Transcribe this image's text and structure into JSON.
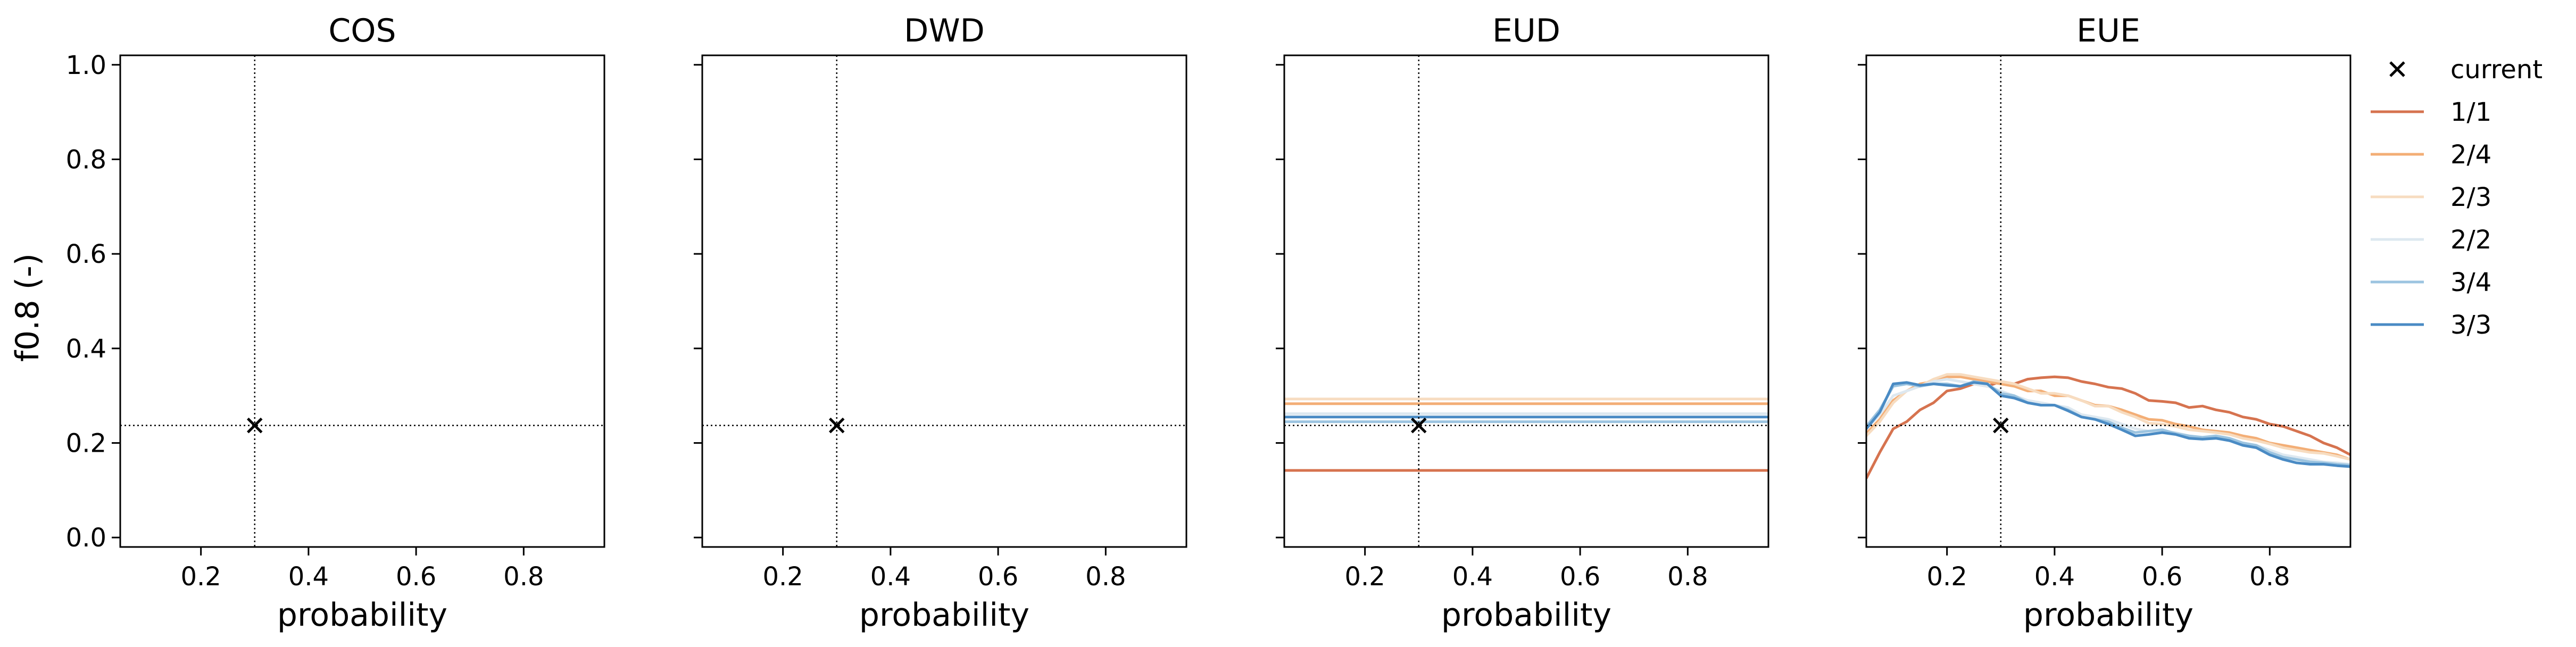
{
  "chart_data": {
    "type": "line",
    "ylabel": "f0.8 (-)",
    "xlabel": "probability",
    "xlim": [
      0.05,
      0.95
    ],
    "ylim": [
      -0.02,
      1.02
    ],
    "xticks": [
      "0.2",
      "0.4",
      "0.6",
      "0.8"
    ],
    "yticks": [
      "0.0",
      "0.2",
      "0.4",
      "0.6",
      "0.8",
      "1.0"
    ],
    "current": {
      "x": 0.3,
      "y": 0.237
    },
    "legend": {
      "placement": "outside-right",
      "entries": [
        {
          "label": "current",
          "marker": "x",
          "color": "#000000"
        },
        {
          "label": "1/1",
          "color": "#d6734f"
        },
        {
          "label": "2/4",
          "color": "#f3ae76"
        },
        {
          "label": "2/3",
          "color": "#f7dcc0"
        },
        {
          "label": "2/2",
          "color": "#dde8f0"
        },
        {
          "label": "3/4",
          "color": "#9cc4e0"
        },
        {
          "label": "3/3",
          "color": "#4a8bc4"
        }
      ]
    },
    "panels": [
      {
        "title": "COS",
        "series": []
      },
      {
        "title": "DWD",
        "series": []
      },
      {
        "title": "EUD",
        "series": [
          {
            "legend": "1/1",
            "x": [
              0.05,
              0.95
            ],
            "y": [
              0.142,
              0.142
            ]
          },
          {
            "legend": "2/4",
            "x": [
              0.05,
              0.95
            ],
            "y": [
              0.283,
              0.283
            ]
          },
          {
            "legend": "2/3",
            "x": [
              0.05,
              0.95
            ],
            "y": [
              0.293,
              0.293
            ]
          },
          {
            "legend": "2/2",
            "x": [
              0.05,
              0.95
            ],
            "y": [
              0.262,
              0.262
            ]
          },
          {
            "legend": "3/4",
            "x": [
              0.05,
              0.95
            ],
            "y": [
              0.245,
              0.245
            ]
          },
          {
            "legend": "3/3",
            "x": [
              0.05,
              0.95
            ],
            "y": [
              0.255,
              0.255
            ]
          }
        ]
      },
      {
        "title": "EUE",
        "series": [
          {
            "legend": "1/1",
            "x": [
              0.05,
              0.075,
              0.1,
              0.125,
              0.15,
              0.175,
              0.2,
              0.225,
              0.25,
              0.275,
              0.3,
              0.325,
              0.35,
              0.375,
              0.4,
              0.425,
              0.45,
              0.475,
              0.5,
              0.525,
              0.55,
              0.575,
              0.6,
              0.625,
              0.65,
              0.675,
              0.7,
              0.725,
              0.75,
              0.775,
              0.8,
              0.825,
              0.85,
              0.875,
              0.9,
              0.925,
              0.95
            ],
            "y": [
              0.125,
              0.18,
              0.23,
              0.245,
              0.27,
              0.285,
              0.31,
              0.315,
              0.325,
              0.32,
              0.33,
              0.325,
              0.335,
              0.338,
              0.34,
              0.338,
              0.33,
              0.325,
              0.318,
              0.315,
              0.305,
              0.29,
              0.288,
              0.285,
              0.275,
              0.278,
              0.27,
              0.265,
              0.255,
              0.25,
              0.24,
              0.235,
              0.225,
              0.215,
              0.2,
              0.19,
              0.175
            ]
          },
          {
            "legend": "2/4",
            "x": [
              0.05,
              0.075,
              0.1,
              0.125,
              0.15,
              0.175,
              0.2,
              0.225,
              0.25,
              0.275,
              0.3,
              0.325,
              0.35,
              0.375,
              0.4,
              0.425,
              0.45,
              0.475,
              0.5,
              0.525,
              0.55,
              0.575,
              0.6,
              0.625,
              0.65,
              0.675,
              0.7,
              0.725,
              0.75,
              0.775,
              0.8,
              0.825,
              0.85,
              0.875,
              0.9,
              0.925,
              0.95
            ],
            "y": [
              0.22,
              0.25,
              0.29,
              0.31,
              0.325,
              0.33,
              0.34,
              0.34,
              0.335,
              0.33,
              0.325,
              0.32,
              0.31,
              0.31,
              0.3,
              0.3,
              0.29,
              0.28,
              0.278,
              0.27,
              0.26,
              0.25,
              0.248,
              0.24,
              0.235,
              0.228,
              0.225,
              0.222,
              0.215,
              0.21,
              0.2,
              0.195,
              0.19,
              0.185,
              0.18,
              0.175,
              0.165
            ]
          },
          {
            "legend": "2/3",
            "x": [
              0.05,
              0.075,
              0.1,
              0.125,
              0.15,
              0.175,
              0.2,
              0.225,
              0.25,
              0.275,
              0.3,
              0.325,
              0.35,
              0.375,
              0.4,
              0.425,
              0.45,
              0.475,
              0.5,
              0.525,
              0.55,
              0.575,
              0.6,
              0.625,
              0.65,
              0.675,
              0.7,
              0.725,
              0.75,
              0.775,
              0.8,
              0.825,
              0.85,
              0.875,
              0.9,
              0.925,
              0.95
            ],
            "y": [
              0.215,
              0.245,
              0.285,
              0.31,
              0.32,
              0.335,
              0.345,
              0.345,
              0.34,
              0.335,
              0.33,
              0.325,
              0.315,
              0.305,
              0.305,
              0.3,
              0.29,
              0.278,
              0.278,
              0.265,
              0.255,
              0.242,
              0.24,
              0.235,
              0.228,
              0.225,
              0.222,
              0.218,
              0.21,
              0.205,
              0.198,
              0.19,
              0.185,
              0.18,
              0.178,
              0.172,
              0.165
            ]
          },
          {
            "legend": "2/2",
            "x": [
              0.05,
              0.075,
              0.1,
              0.125,
              0.15,
              0.175,
              0.2,
              0.225,
              0.25,
              0.275,
              0.3,
              0.325,
              0.35,
              0.375,
              0.4,
              0.425,
              0.45,
              0.475,
              0.5,
              0.525,
              0.55,
              0.575,
              0.6,
              0.625,
              0.65,
              0.675,
              0.7,
              0.725,
              0.75,
              0.775,
              0.8,
              0.825,
              0.85,
              0.875,
              0.9,
              0.925,
              0.95
            ],
            "y": [
              0.23,
              0.26,
              0.3,
              0.31,
              0.32,
              0.33,
              0.335,
              0.33,
              0.325,
              0.32,
              0.31,
              0.3,
              0.29,
              0.285,
              0.28,
              0.275,
              0.26,
              0.255,
              0.25,
              0.24,
              0.23,
              0.225,
              0.225,
              0.222,
              0.215,
              0.21,
              0.21,
              0.205,
              0.2,
              0.195,
              0.185,
              0.175,
              0.17,
              0.165,
              0.16,
              0.158,
              0.155
            ]
          },
          {
            "legend": "3/4",
            "x": [
              0.05,
              0.075,
              0.1,
              0.125,
              0.15,
              0.175,
              0.2,
              0.225,
              0.25,
              0.275,
              0.3,
              0.325,
              0.35,
              0.375,
              0.4,
              0.425,
              0.45,
              0.475,
              0.5,
              0.525,
              0.55,
              0.575,
              0.6,
              0.625,
              0.65,
              0.675,
              0.7,
              0.725,
              0.75,
              0.775,
              0.8,
              0.825,
              0.85,
              0.875,
              0.9,
              0.925,
              0.95
            ],
            "y": [
              0.235,
              0.27,
              0.32,
              0.325,
              0.32,
              0.325,
              0.325,
              0.32,
              0.33,
              0.325,
              0.305,
              0.3,
              0.285,
              0.28,
              0.28,
              0.27,
              0.255,
              0.25,
              0.245,
              0.232,
              0.222,
              0.225,
              0.228,
              0.22,
              0.215,
              0.212,
              0.215,
              0.21,
              0.2,
              0.195,
              0.18,
              0.17,
              0.165,
              0.16,
              0.158,
              0.155,
              0.153
            ]
          },
          {
            "legend": "3/3",
            "x": [
              0.05,
              0.075,
              0.1,
              0.125,
              0.15,
              0.175,
              0.2,
              0.225,
              0.25,
              0.275,
              0.3,
              0.325,
              0.35,
              0.375,
              0.4,
              0.425,
              0.45,
              0.475,
              0.5,
              0.525,
              0.55,
              0.575,
              0.6,
              0.625,
              0.65,
              0.675,
              0.7,
              0.725,
              0.75,
              0.775,
              0.8,
              0.825,
              0.85,
              0.875,
              0.9,
              0.925,
              0.95
            ],
            "y": [
              0.23,
              0.265,
              0.325,
              0.328,
              0.322,
              0.325,
              0.322,
              0.32,
              0.328,
              0.325,
              0.3,
              0.295,
              0.285,
              0.28,
              0.28,
              0.268,
              0.255,
              0.25,
              0.24,
              0.228,
              0.215,
              0.218,
              0.222,
              0.218,
              0.21,
              0.208,
              0.21,
              0.205,
              0.195,
              0.19,
              0.175,
              0.165,
              0.158,
              0.155,
              0.155,
              0.152,
              0.15
            ]
          }
        ]
      }
    ]
  }
}
